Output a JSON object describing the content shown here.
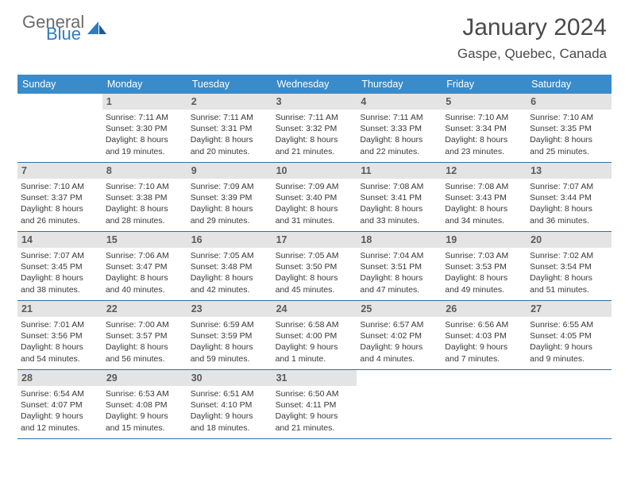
{
  "logo": {
    "word1": "General",
    "word2": "Blue"
  },
  "title": "January 2024",
  "subtitle": "Gaspe, Quebec, Canada",
  "colors": {
    "header_bar": "#3a8bc9",
    "daynum_bg": "#e4e4e4",
    "week_border": "#2f6fa5",
    "logo_gray": "#6b6b6b",
    "logo_blue": "#2f7bbf"
  },
  "weekdays": [
    "Sunday",
    "Monday",
    "Tuesday",
    "Wednesday",
    "Thursday",
    "Friday",
    "Saturday"
  ],
  "weeks": [
    [
      {
        "n": "",
        "l1": "",
        "l2": "",
        "l3": "",
        "l4": ""
      },
      {
        "n": "1",
        "l1": "Sunrise: 7:11 AM",
        "l2": "Sunset: 3:30 PM",
        "l3": "Daylight: 8 hours",
        "l4": "and 19 minutes."
      },
      {
        "n": "2",
        "l1": "Sunrise: 7:11 AM",
        "l2": "Sunset: 3:31 PM",
        "l3": "Daylight: 8 hours",
        "l4": "and 20 minutes."
      },
      {
        "n": "3",
        "l1": "Sunrise: 7:11 AM",
        "l2": "Sunset: 3:32 PM",
        "l3": "Daylight: 8 hours",
        "l4": "and 21 minutes."
      },
      {
        "n": "4",
        "l1": "Sunrise: 7:11 AM",
        "l2": "Sunset: 3:33 PM",
        "l3": "Daylight: 8 hours",
        "l4": "and 22 minutes."
      },
      {
        "n": "5",
        "l1": "Sunrise: 7:10 AM",
        "l2": "Sunset: 3:34 PM",
        "l3": "Daylight: 8 hours",
        "l4": "and 23 minutes."
      },
      {
        "n": "6",
        "l1": "Sunrise: 7:10 AM",
        "l2": "Sunset: 3:35 PM",
        "l3": "Daylight: 8 hours",
        "l4": "and 25 minutes."
      }
    ],
    [
      {
        "n": "7",
        "l1": "Sunrise: 7:10 AM",
        "l2": "Sunset: 3:37 PM",
        "l3": "Daylight: 8 hours",
        "l4": "and 26 minutes."
      },
      {
        "n": "8",
        "l1": "Sunrise: 7:10 AM",
        "l2": "Sunset: 3:38 PM",
        "l3": "Daylight: 8 hours",
        "l4": "and 28 minutes."
      },
      {
        "n": "9",
        "l1": "Sunrise: 7:09 AM",
        "l2": "Sunset: 3:39 PM",
        "l3": "Daylight: 8 hours",
        "l4": "and 29 minutes."
      },
      {
        "n": "10",
        "l1": "Sunrise: 7:09 AM",
        "l2": "Sunset: 3:40 PM",
        "l3": "Daylight: 8 hours",
        "l4": "and 31 minutes."
      },
      {
        "n": "11",
        "l1": "Sunrise: 7:08 AM",
        "l2": "Sunset: 3:41 PM",
        "l3": "Daylight: 8 hours",
        "l4": "and 33 minutes."
      },
      {
        "n": "12",
        "l1": "Sunrise: 7:08 AM",
        "l2": "Sunset: 3:43 PM",
        "l3": "Daylight: 8 hours",
        "l4": "and 34 minutes."
      },
      {
        "n": "13",
        "l1": "Sunrise: 7:07 AM",
        "l2": "Sunset: 3:44 PM",
        "l3": "Daylight: 8 hours",
        "l4": "and 36 minutes."
      }
    ],
    [
      {
        "n": "14",
        "l1": "Sunrise: 7:07 AM",
        "l2": "Sunset: 3:45 PM",
        "l3": "Daylight: 8 hours",
        "l4": "and 38 minutes."
      },
      {
        "n": "15",
        "l1": "Sunrise: 7:06 AM",
        "l2": "Sunset: 3:47 PM",
        "l3": "Daylight: 8 hours",
        "l4": "and 40 minutes."
      },
      {
        "n": "16",
        "l1": "Sunrise: 7:05 AM",
        "l2": "Sunset: 3:48 PM",
        "l3": "Daylight: 8 hours",
        "l4": "and 42 minutes."
      },
      {
        "n": "17",
        "l1": "Sunrise: 7:05 AM",
        "l2": "Sunset: 3:50 PM",
        "l3": "Daylight: 8 hours",
        "l4": "and 45 minutes."
      },
      {
        "n": "18",
        "l1": "Sunrise: 7:04 AM",
        "l2": "Sunset: 3:51 PM",
        "l3": "Daylight: 8 hours",
        "l4": "and 47 minutes."
      },
      {
        "n": "19",
        "l1": "Sunrise: 7:03 AM",
        "l2": "Sunset: 3:53 PM",
        "l3": "Daylight: 8 hours",
        "l4": "and 49 minutes."
      },
      {
        "n": "20",
        "l1": "Sunrise: 7:02 AM",
        "l2": "Sunset: 3:54 PM",
        "l3": "Daylight: 8 hours",
        "l4": "and 51 minutes."
      }
    ],
    [
      {
        "n": "21",
        "l1": "Sunrise: 7:01 AM",
        "l2": "Sunset: 3:56 PM",
        "l3": "Daylight: 8 hours",
        "l4": "and 54 minutes."
      },
      {
        "n": "22",
        "l1": "Sunrise: 7:00 AM",
        "l2": "Sunset: 3:57 PM",
        "l3": "Daylight: 8 hours",
        "l4": "and 56 minutes."
      },
      {
        "n": "23",
        "l1": "Sunrise: 6:59 AM",
        "l2": "Sunset: 3:59 PM",
        "l3": "Daylight: 8 hours",
        "l4": "and 59 minutes."
      },
      {
        "n": "24",
        "l1": "Sunrise: 6:58 AM",
        "l2": "Sunset: 4:00 PM",
        "l3": "Daylight: 9 hours",
        "l4": "and 1 minute."
      },
      {
        "n": "25",
        "l1": "Sunrise: 6:57 AM",
        "l2": "Sunset: 4:02 PM",
        "l3": "Daylight: 9 hours",
        "l4": "and 4 minutes."
      },
      {
        "n": "26",
        "l1": "Sunrise: 6:56 AM",
        "l2": "Sunset: 4:03 PM",
        "l3": "Daylight: 9 hours",
        "l4": "and 7 minutes."
      },
      {
        "n": "27",
        "l1": "Sunrise: 6:55 AM",
        "l2": "Sunset: 4:05 PM",
        "l3": "Daylight: 9 hours",
        "l4": "and 9 minutes."
      }
    ],
    [
      {
        "n": "28",
        "l1": "Sunrise: 6:54 AM",
        "l2": "Sunset: 4:07 PM",
        "l3": "Daylight: 9 hours",
        "l4": "and 12 minutes."
      },
      {
        "n": "29",
        "l1": "Sunrise: 6:53 AM",
        "l2": "Sunset: 4:08 PM",
        "l3": "Daylight: 9 hours",
        "l4": "and 15 minutes."
      },
      {
        "n": "30",
        "l1": "Sunrise: 6:51 AM",
        "l2": "Sunset: 4:10 PM",
        "l3": "Daylight: 9 hours",
        "l4": "and 18 minutes."
      },
      {
        "n": "31",
        "l1": "Sunrise: 6:50 AM",
        "l2": "Sunset: 4:11 PM",
        "l3": "Daylight: 9 hours",
        "l4": "and 21 minutes."
      },
      {
        "n": "",
        "l1": "",
        "l2": "",
        "l3": "",
        "l4": ""
      },
      {
        "n": "",
        "l1": "",
        "l2": "",
        "l3": "",
        "l4": ""
      },
      {
        "n": "",
        "l1": "",
        "l2": "",
        "l3": "",
        "l4": ""
      }
    ]
  ]
}
